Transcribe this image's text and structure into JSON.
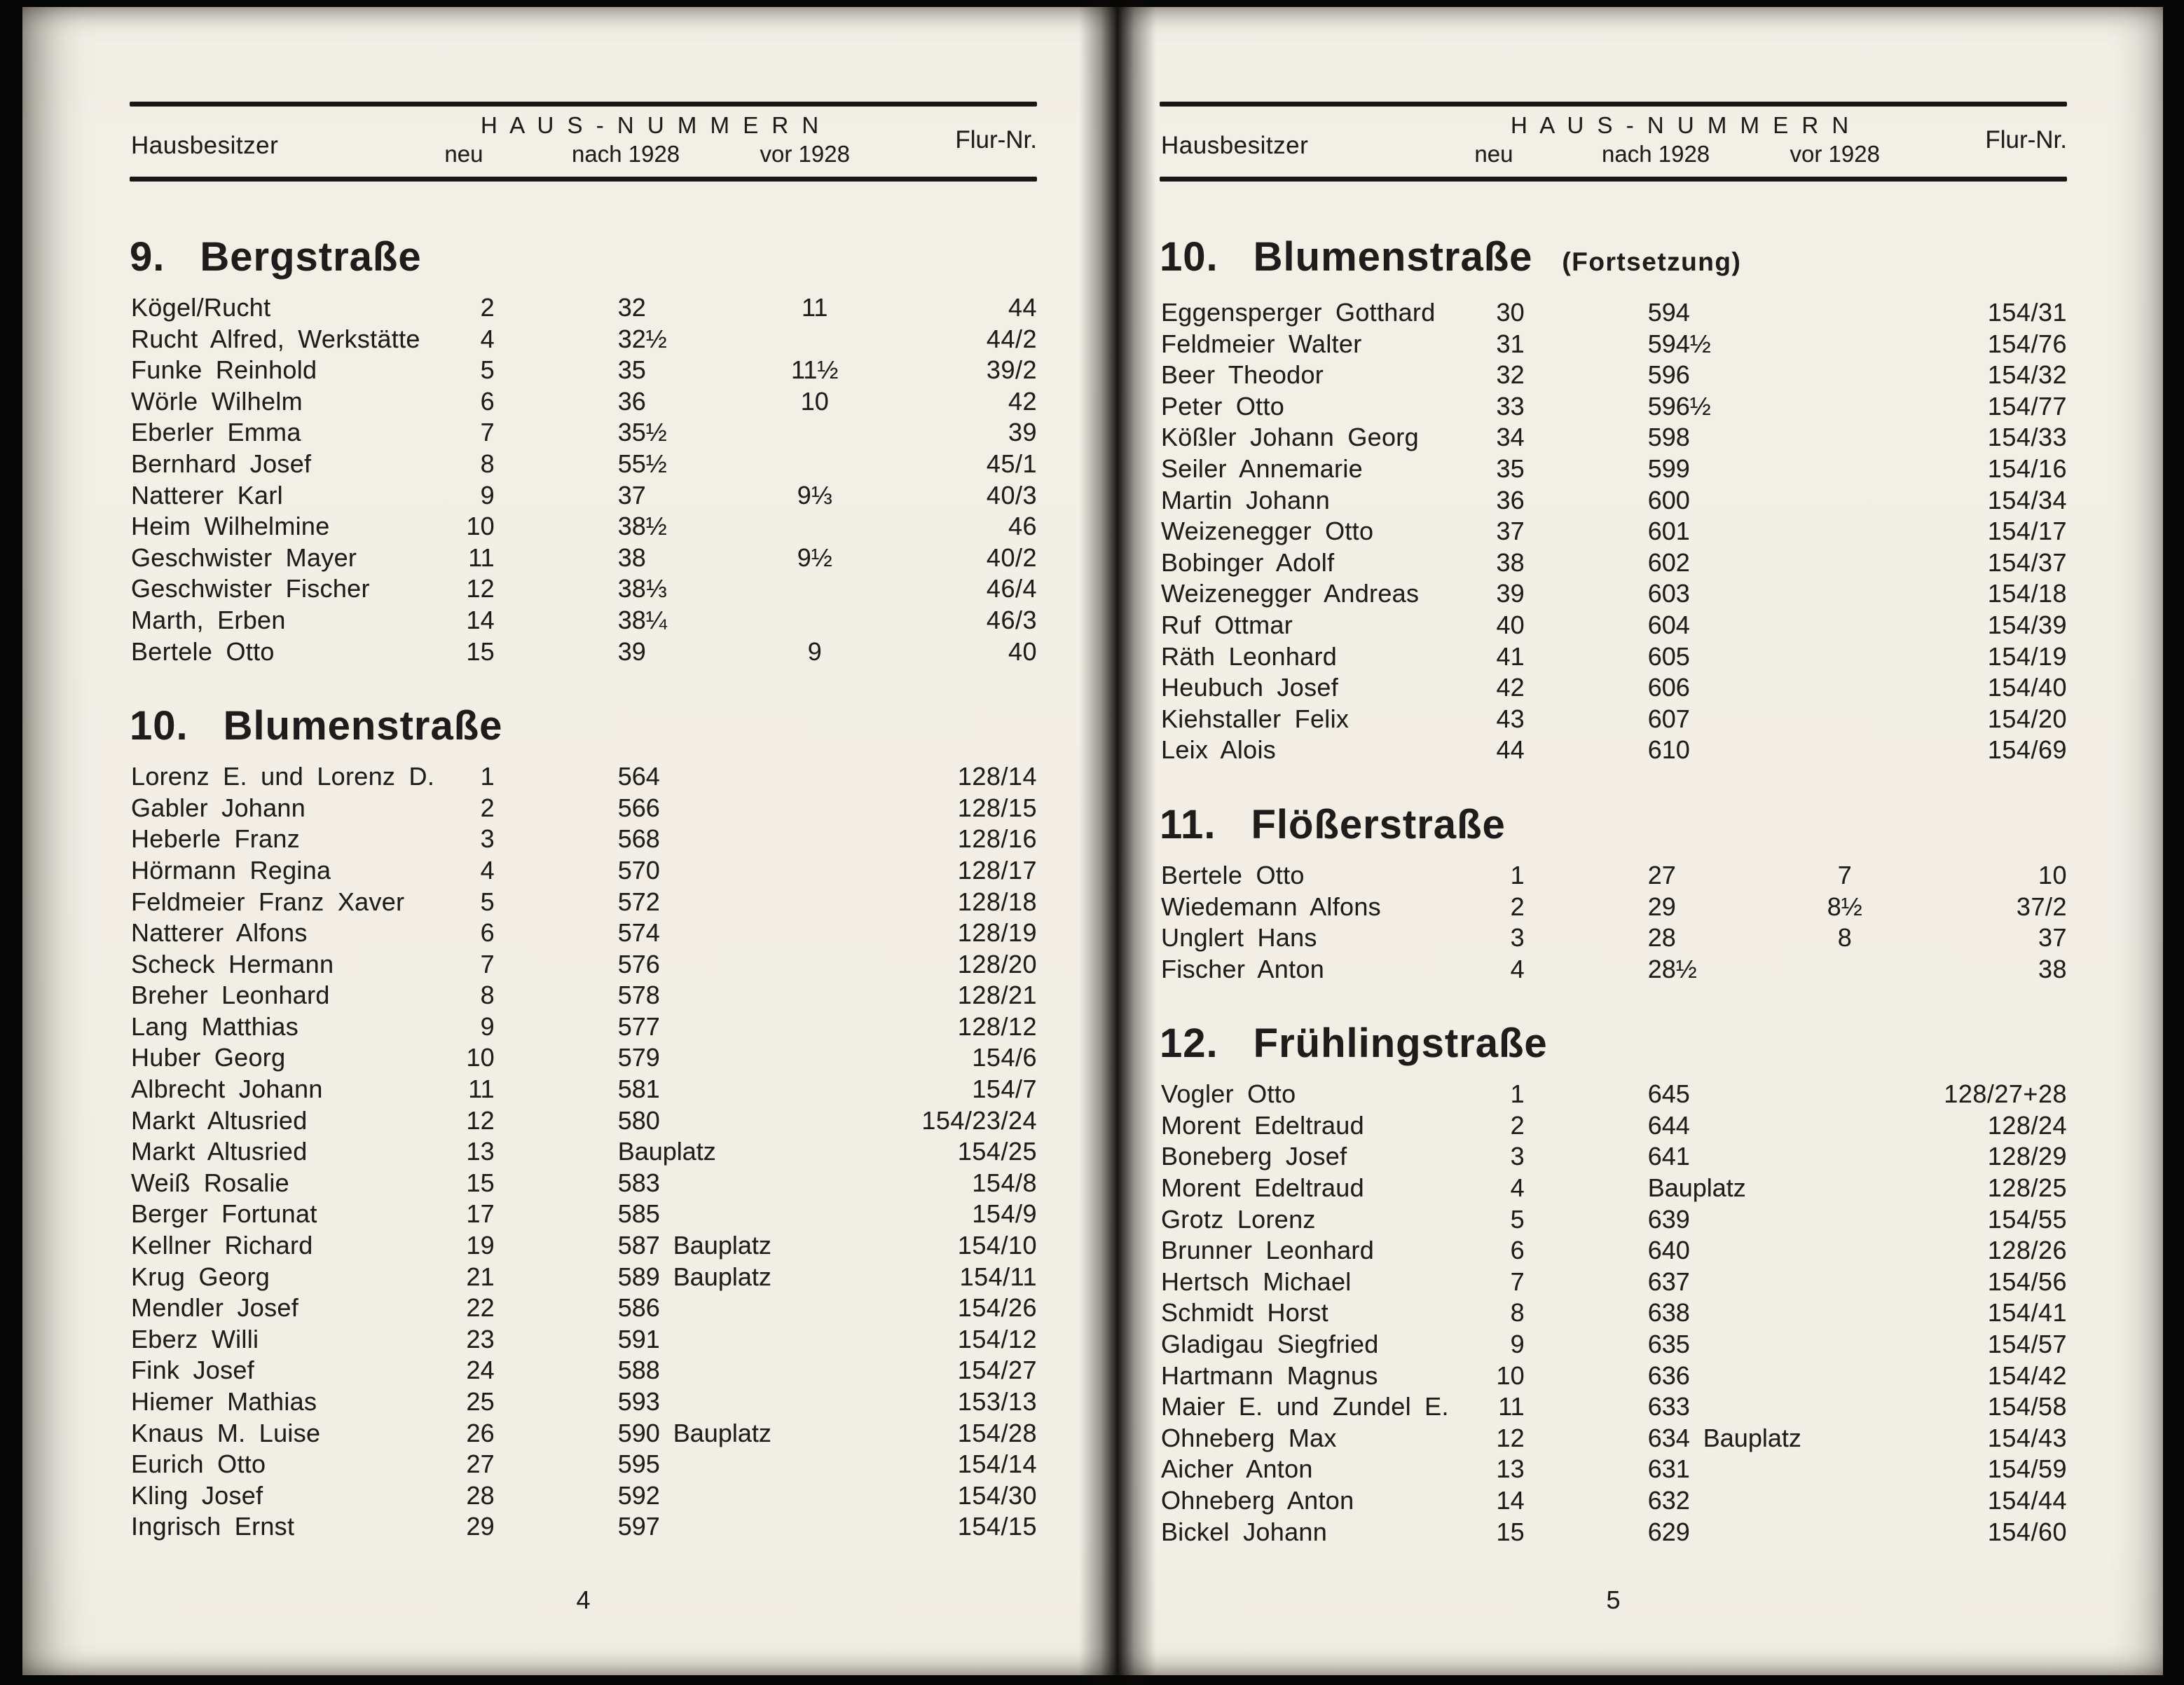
{
  "header": {
    "owner_label": "Hausbesitzer",
    "numbers_label": "H A U S - N U M M E R N",
    "sub_neu": "neu",
    "sub_nach": "nach 1928",
    "sub_vor": "vor 1928",
    "flur_label": "Flur-Nr."
  },
  "pages": [
    {
      "side": "left",
      "page_number": "4",
      "sections": [
        {
          "no": "9.",
          "name": "Bergstraße",
          "suffix": "",
          "rows": [
            {
              "name": "Kögel/Rucht",
              "neu": "2",
              "nach": "32",
              "vor": "11",
              "flur": "44"
            },
            {
              "name": "Rucht Alfred, Werkstätte",
              "neu": "4",
              "nach": "32½",
              "vor": "",
              "flur": "44/2"
            },
            {
              "name": "Funke Reinhold",
              "neu": "5",
              "nach": "35",
              "vor": "11½",
              "flur": "39/2"
            },
            {
              "name": "Wörle Wilhelm",
              "neu": "6",
              "nach": "36",
              "vor": "10",
              "flur": "42"
            },
            {
              "name": "Eberler Emma",
              "neu": "7",
              "nach": "35½",
              "vor": "",
              "flur": "39"
            },
            {
              "name": "Bernhard Josef",
              "neu": "8",
              "nach": "55½",
              "vor": "",
              "flur": "45/1"
            },
            {
              "name": "Natterer Karl",
              "neu": "9",
              "nach": "37",
              "vor": "9⅓",
              "flur": "40/3"
            },
            {
              "name": "Heim Wilhelmine",
              "neu": "10",
              "nach": "38½",
              "vor": "",
              "flur": "46"
            },
            {
              "name": "Geschwister Mayer",
              "neu": "11",
              "nach": "38",
              "vor": "9½",
              "flur": "40/2"
            },
            {
              "name": "Geschwister Fischer",
              "neu": "12",
              "nach": "38⅓",
              "vor": "",
              "flur": "46/4"
            },
            {
              "name": "Marth, Erben",
              "neu": "14",
              "nach": "38¼",
              "vor": "",
              "flur": "46/3"
            },
            {
              "name": "Bertele Otto",
              "neu": "15",
              "nach": "39",
              "vor": "9",
              "flur": "40"
            }
          ]
        },
        {
          "no": "10.",
          "name": "Blumenstraße",
          "suffix": "",
          "rows": [
            {
              "name": "Lorenz E. und Lorenz D.",
              "neu": "1",
              "nach": "564",
              "vor": "",
              "flur": "128/14"
            },
            {
              "name": "Gabler Johann",
              "neu": "2",
              "nach": "566",
              "vor": "",
              "flur": "128/15"
            },
            {
              "name": "Heberle Franz",
              "neu": "3",
              "nach": "568",
              "vor": "",
              "flur": "128/16"
            },
            {
              "name": "Hörmann Regina",
              "neu": "4",
              "nach": "570",
              "vor": "",
              "flur": "128/17"
            },
            {
              "name": "Feldmeier Franz Xaver",
              "neu": "5",
              "nach": "572",
              "vor": "",
              "flur": "128/18"
            },
            {
              "name": "Natterer Alfons",
              "neu": "6",
              "nach": "574",
              "vor": "",
              "flur": "128/19"
            },
            {
              "name": "Scheck Hermann",
              "neu": "7",
              "nach": "576",
              "vor": "",
              "flur": "128/20"
            },
            {
              "name": "Breher Leonhard",
              "neu": "8",
              "nach": "578",
              "vor": "",
              "flur": "128/21"
            },
            {
              "name": "Lang Matthias",
              "neu": "9",
              "nach": "577",
              "vor": "",
              "flur": "128/12"
            },
            {
              "name": "Huber Georg",
              "neu": "10",
              "nach": "579",
              "vor": "",
              "flur": "154/6"
            },
            {
              "name": "Albrecht Johann",
              "neu": "11",
              "nach": "581",
              "vor": "",
              "flur": "154/7"
            },
            {
              "name": "Markt Altusried",
              "neu": "12",
              "nach": "580",
              "vor": "",
              "flur": "154/23/24"
            },
            {
              "name": "Markt Altusried",
              "neu": "13",
              "nach": "Bauplatz",
              "vor": "",
              "flur": "154/25"
            },
            {
              "name": "Weiß Rosalie",
              "neu": "15",
              "nach": "583",
              "vor": "",
              "flur": "154/8"
            },
            {
              "name": "Berger Fortunat",
              "neu": "17",
              "nach": "585",
              "vor": "",
              "flur": "154/9"
            },
            {
              "name": "Kellner Richard",
              "neu": "19",
              "nach": "587 Bauplatz",
              "vor": "",
              "flur": "154/10"
            },
            {
              "name": "Krug Georg",
              "neu": "21",
              "nach": "589 Bauplatz",
              "vor": "",
              "flur": "154/11"
            },
            {
              "name": "Mendler Josef",
              "neu": "22",
              "nach": "586",
              "vor": "",
              "flur": "154/26"
            },
            {
              "name": "Eberz Willi",
              "neu": "23",
              "nach": "591",
              "vor": "",
              "flur": "154/12"
            },
            {
              "name": "Fink Josef",
              "neu": "24",
              "nach": "588",
              "vor": "",
              "flur": "154/27"
            },
            {
              "name": "Hiemer Mathias",
              "neu": "25",
              "nach": "593",
              "vor": "",
              "flur": "153/13"
            },
            {
              "name": "Knaus M. Luise",
              "neu": "26",
              "nach": "590 Bauplatz",
              "vor": "",
              "flur": "154/28"
            },
            {
              "name": "Eurich Otto",
              "neu": "27",
              "nach": "595",
              "vor": "",
              "flur": "154/14"
            },
            {
              "name": "Kling Josef",
              "neu": "28",
              "nach": "592",
              "vor": "",
              "flur": "154/30"
            },
            {
              "name": "Ingrisch Ernst",
              "neu": "29",
              "nach": "597",
              "vor": "",
              "flur": "154/15"
            }
          ]
        }
      ]
    },
    {
      "side": "right",
      "page_number": "5",
      "sections": [
        {
          "no": "10.",
          "name": "Blumenstraße",
          "suffix": "(Fortsetzung)",
          "rows": [
            {
              "name": "Eggensperger Gotthard",
              "neu": "30",
              "nach": "594",
              "vor": "",
              "flur": "154/31"
            },
            {
              "name": "Feldmeier Walter",
              "neu": "31",
              "nach": "594½",
              "vor": "",
              "flur": "154/76"
            },
            {
              "name": "Beer Theodor",
              "neu": "32",
              "nach": "596",
              "vor": "",
              "flur": "154/32"
            },
            {
              "name": "Peter Otto",
              "neu": "33",
              "nach": "596½",
              "vor": "",
              "flur": "154/77"
            },
            {
              "name": "Kößler Johann Georg",
              "neu": "34",
              "nach": "598",
              "vor": "",
              "flur": "154/33"
            },
            {
              "name": "Seiler Annemarie",
              "neu": "35",
              "nach": "599",
              "vor": "",
              "flur": "154/16"
            },
            {
              "name": "Martin Johann",
              "neu": "36",
              "nach": "600",
              "vor": "",
              "flur": "154/34"
            },
            {
              "name": "Weizenegger Otto",
              "neu": "37",
              "nach": "601",
              "vor": "",
              "flur": "154/17"
            },
            {
              "name": "Bobinger Adolf",
              "neu": "38",
              "nach": "602",
              "vor": "",
              "flur": "154/37"
            },
            {
              "name": "Weizenegger Andreas",
              "neu": "39",
              "nach": "603",
              "vor": "",
              "flur": "154/18"
            },
            {
              "name": "Ruf Ottmar",
              "neu": "40",
              "nach": "604",
              "vor": "",
              "flur": "154/39"
            },
            {
              "name": "Räth Leonhard",
              "neu": "41",
              "nach": "605",
              "vor": "",
              "flur": "154/19"
            },
            {
              "name": "Heubuch Josef",
              "neu": "42",
              "nach": "606",
              "vor": "",
              "flur": "154/40"
            },
            {
              "name": "Kiehstaller Felix",
              "neu": "43",
              "nach": "607",
              "vor": "",
              "flur": "154/20"
            },
            {
              "name": "Leix Alois",
              "neu": "44",
              "nach": "610",
              "vor": "",
              "flur": "154/69"
            }
          ]
        },
        {
          "no": "11.",
          "name": "Flößerstraße",
          "suffix": "",
          "rows": [
            {
              "name": "Bertele Otto",
              "neu": "1",
              "nach": "27",
              "vor": "7",
              "flur": "10"
            },
            {
              "name": "Wiedemann Alfons",
              "neu": "2",
              "nach": "29",
              "vor": "8½",
              "flur": "37/2"
            },
            {
              "name": "Unglert Hans",
              "neu": "3",
              "nach": "28",
              "vor": "8",
              "flur": "37"
            },
            {
              "name": "Fischer Anton",
              "neu": "4",
              "nach": "28½",
              "vor": "",
              "flur": "38"
            }
          ]
        },
        {
          "no": "12.",
          "name": "Frühlingstraße",
          "suffix": "",
          "rows": [
            {
              "name": "Vogler Otto",
              "neu": "1",
              "nach": "645",
              "vor": "",
              "flur": "128/27+28"
            },
            {
              "name": "Morent Edeltraud",
              "neu": "2",
              "nach": "644",
              "vor": "",
              "flur": "128/24"
            },
            {
              "name": "Boneberg Josef",
              "neu": "3",
              "nach": "641",
              "vor": "",
              "flur": "128/29"
            },
            {
              "name": "Morent Edeltraud",
              "neu": "4",
              "nach": "Bauplatz",
              "vor": "",
              "flur": "128/25"
            },
            {
              "name": "Grotz Lorenz",
              "neu": "5",
              "nach": "639",
              "vor": "",
              "flur": "154/55"
            },
            {
              "name": "Brunner Leonhard",
              "neu": "6",
              "nach": "640",
              "vor": "",
              "flur": "128/26"
            },
            {
              "name": "Hertsch Michael",
              "neu": "7",
              "nach": "637",
              "vor": "",
              "flur": "154/56"
            },
            {
              "name": "Schmidt Horst",
              "neu": "8",
              "nach": "638",
              "vor": "",
              "flur": "154/41"
            },
            {
              "name": "Gladigau Siegfried",
              "neu": "9",
              "nach": "635",
              "vor": "",
              "flur": "154/57"
            },
            {
              "name": "Hartmann Magnus",
              "neu": "10",
              "nach": "636",
              "vor": "",
              "flur": "154/42"
            },
            {
              "name": "Maier E. und Zundel E.",
              "neu": "11",
              "nach": "633",
              "vor": "",
              "flur": "154/58"
            },
            {
              "name": "Ohneberg Max",
              "neu": "12",
              "nach": "634 Bauplatz",
              "vor": "",
              "flur": "154/43"
            },
            {
              "name": "Aicher Anton",
              "neu": "13",
              "nach": "631",
              "vor": "",
              "flur": "154/59"
            },
            {
              "name": "Ohneberg Anton",
              "neu": "14",
              "nach": "632",
              "vor": "",
              "flur": "154/44"
            },
            {
              "name": "Bickel Johann",
              "neu": "15",
              "nach": "629",
              "vor": "",
              "flur": "154/60"
            }
          ]
        }
      ]
    }
  ]
}
